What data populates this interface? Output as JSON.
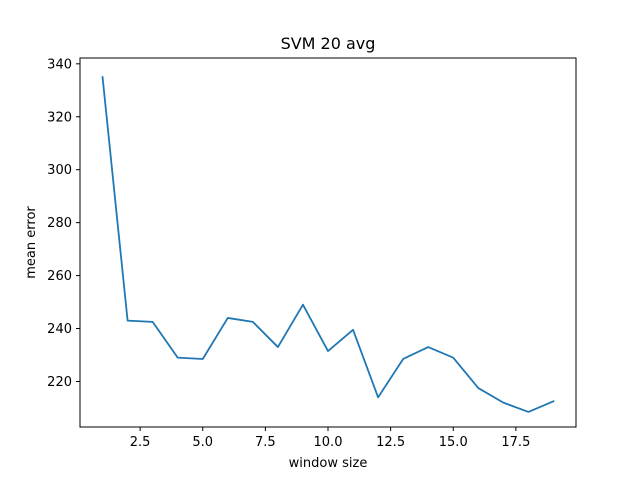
{
  "chart_data": {
    "type": "line",
    "title": "SVM 20 avg",
    "xlabel": "window size",
    "ylabel": "mean error",
    "xlim": [
      0.1,
      19.9
    ],
    "ylim": [
      202.8,
      342.2
    ],
    "xticks": [
      2.5,
      5.0,
      7.5,
      10.0,
      12.5,
      15.0,
      17.5
    ],
    "xtick_labels": [
      "2.5",
      "5.0",
      "7.5",
      "10.0",
      "12.5",
      "15.0",
      "17.5"
    ],
    "yticks": [
      220,
      240,
      260,
      280,
      300,
      320,
      340
    ],
    "ytick_labels": [
      "220",
      "240",
      "260",
      "280",
      "300",
      "320",
      "340"
    ],
    "grid": false,
    "series": [
      {
        "color": "#1f77b4",
        "x": [
          1,
          2,
          3,
          4,
          5,
          6,
          7,
          8,
          9,
          10,
          11,
          12,
          13,
          14,
          15,
          16,
          17,
          18,
          19
        ],
        "y": [
          335,
          243,
          242.5,
          229,
          228.5,
          244,
          242.5,
          233,
          249,
          231.5,
          239.5,
          214,
          228.5,
          233,
          229,
          217.5,
          212,
          208.5,
          212.5
        ]
      }
    ]
  }
}
